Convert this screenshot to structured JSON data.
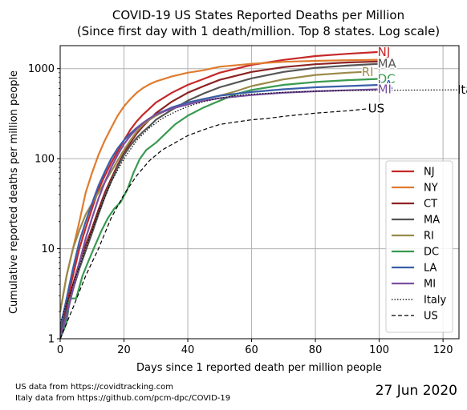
{
  "chart_data": {
    "type": "line",
    "title": "COVID-19 US States Reported Deaths per Million",
    "subtitle": "(Since first day with 1 death/million. Top 8 states. Log scale)",
    "xlabel": "Days since 1 reported death per million people",
    "ylabel": "Cumulative reported deaths per million people",
    "xlim": [
      0,
      125
    ],
    "ylim": [
      1,
      1800
    ],
    "yscale": "log",
    "xticks": [
      0,
      20,
      40,
      60,
      80,
      100,
      120
    ],
    "xtick_labels": [
      "0",
      "20",
      "40",
      "60",
      "80",
      "100",
      "120"
    ],
    "yticks": [
      1,
      10,
      100,
      1000
    ],
    "ytick_labels": [
      "1",
      "10",
      "100",
      "1000"
    ],
    "grid": true,
    "legend_position": "lower-right",
    "series": [
      {
        "name": "NJ",
        "color": "#c62828",
        "style": "solid",
        "end_label": "NJ",
        "x": [
          0,
          2,
          4,
          6,
          8,
          10,
          12,
          14,
          16,
          18,
          20,
          22,
          24,
          26,
          28,
          30,
          35,
          40,
          45,
          50,
          60,
          70,
          80,
          90,
          100
        ],
        "y": [
          1.2,
          2.5,
          5,
          10,
          17,
          28,
          45,
          65,
          90,
          120,
          160,
          210,
          260,
          310,
          360,
          420,
          540,
          660,
          770,
          900,
          1100,
          1250,
          1380,
          1460,
          1530
        ]
      },
      {
        "name": "NY",
        "color": "#e07b2e",
        "style": "solid",
        "x": [
          0,
          2,
          4,
          6,
          8,
          10,
          12,
          14,
          16,
          18,
          20,
          22,
          24,
          26,
          28,
          30,
          35,
          40,
          45,
          50,
          60,
          70,
          80,
          90,
          100
        ],
        "y": [
          2,
          5,
          10,
          20,
          42,
          70,
          110,
          160,
          220,
          300,
          380,
          460,
          540,
          610,
          670,
          720,
          820,
          900,
          960,
          1050,
          1130,
          1190,
          1220,
          1240,
          1255
        ]
      },
      {
        "name": "CT",
        "color": "#8b2323",
        "style": "solid",
        "x": [
          0,
          2,
          4,
          6,
          8,
          10,
          12,
          14,
          16,
          18,
          20,
          22,
          24,
          26,
          28,
          30,
          35,
          40,
          45,
          50,
          60,
          70,
          80,
          90,
          100
        ],
        "y": [
          1.1,
          2.2,
          4,
          7,
          11,
          17,
          27,
          42,
          60,
          85,
          115,
          150,
          190,
          230,
          270,
          320,
          430,
          540,
          640,
          750,
          920,
          1040,
          1120,
          1170,
          1200
        ]
      },
      {
        "name": "MA",
        "color": "#555555",
        "style": "solid",
        "end_label": "MA",
        "x": [
          0,
          2,
          4,
          6,
          8,
          10,
          12,
          14,
          16,
          18,
          20,
          22,
          24,
          26,
          28,
          30,
          35,
          40,
          45,
          50,
          60,
          70,
          80,
          90,
          100
        ],
        "y": [
          1.1,
          2,
          3.5,
          6,
          9.5,
          15,
          24,
          38,
          56,
          80,
          110,
          140,
          170,
          200,
          230,
          270,
          350,
          440,
          530,
          620,
          780,
          920,
          1020,
          1080,
          1130
        ]
      },
      {
        "name": "RI",
        "color": "#9a8a4a",
        "style": "solid",
        "end_label": "RI",
        "x": [
          0,
          2,
          4,
          6,
          8,
          10,
          12,
          14,
          16,
          18,
          20,
          22,
          24,
          26,
          28,
          30,
          35,
          40,
          45,
          50,
          55,
          60,
          70,
          80,
          90,
          95
        ],
        "y": [
          2,
          5,
          10,
          16,
          24,
          32,
          42,
          55,
          72,
          95,
          125,
          160,
          200,
          240,
          270,
          300,
          370,
          420,
          460,
          500,
          560,
          640,
          760,
          850,
          900,
          920
        ]
      },
      {
        "name": "DC",
        "color": "#3a9a50",
        "style": "solid",
        "end_label": "DC",
        "x": [
          0,
          2,
          3,
          5,
          7,
          9,
          11,
          13,
          15,
          17,
          19,
          21,
          23,
          25,
          27,
          30,
          33,
          36,
          40,
          45,
          50,
          55,
          60,
          70,
          80,
          90,
          100
        ],
        "y": [
          1,
          1.5,
          2.8,
          2.8,
          5,
          7.5,
          11,
          16,
          22,
          28,
          33,
          45,
          70,
          100,
          125,
          150,
          190,
          240,
          300,
          370,
          440,
          520,
          580,
          660,
          710,
          745,
          770
        ]
      },
      {
        "name": "LA",
        "color": "#3a5faa",
        "style": "solid",
        "end_label": "LA",
        "x": [
          0,
          2,
          4,
          6,
          8,
          10,
          12,
          14,
          16,
          18,
          20,
          22,
          24,
          26,
          28,
          30,
          35,
          40,
          45,
          50,
          60,
          70,
          80,
          90,
          100
        ],
        "y": [
          1.3,
          2.8,
          6,
          12,
          20,
          32,
          50,
          72,
          100,
          130,
          160,
          190,
          220,
          250,
          280,
          310,
          370,
          420,
          460,
          500,
          550,
          590,
          620,
          640,
          660
        ]
      },
      {
        "name": "MI",
        "color": "#7a4fa0",
        "style": "solid",
        "end_label": "MI",
        "x": [
          0,
          2,
          4,
          6,
          8,
          10,
          12,
          14,
          16,
          18,
          20,
          22,
          24,
          26,
          28,
          30,
          35,
          40,
          45,
          50,
          60,
          70,
          80,
          90,
          100
        ],
        "y": [
          1,
          1.8,
          3.5,
          7,
          13,
          22,
          36,
          55,
          80,
          110,
          145,
          180,
          215,
          250,
          280,
          310,
          360,
          400,
          440,
          470,
          510,
          540,
          560,
          575,
          590
        ]
      },
      {
        "name": "Italy",
        "color": "#000000",
        "style": "dotted",
        "end_label": "Italy",
        "x": [
          0,
          4,
          8,
          12,
          16,
          20,
          24,
          28,
          32,
          36,
          40,
          45,
          50,
          55,
          60,
          70,
          80,
          90,
          100,
          110,
          120,
          125
        ],
        "y": [
          1.5,
          4,
          10,
          25,
          55,
          100,
          160,
          220,
          280,
          330,
          380,
          430,
          470,
          500,
          520,
          545,
          560,
          570,
          575,
          578,
          580,
          581
        ]
      },
      {
        "name": "US",
        "color": "#000000",
        "style": "dashed",
        "end_label": "US",
        "x": [
          0,
          4,
          8,
          12,
          16,
          20,
          24,
          28,
          32,
          36,
          40,
          45,
          50,
          55,
          60,
          65,
          70,
          80,
          90,
          97
        ],
        "y": [
          1,
          2.2,
          5,
          10,
          22,
          40,
          65,
          95,
          125,
          150,
          180,
          210,
          240,
          255,
          270,
          280,
          295,
          320,
          340,
          360
        ]
      }
    ]
  },
  "sources": {
    "line1": "US data from https://covidtracking.com",
    "line2": "Italy data from https://github.com/pcm-dpc/COVID-19"
  },
  "date_label": "27 Jun 2020"
}
